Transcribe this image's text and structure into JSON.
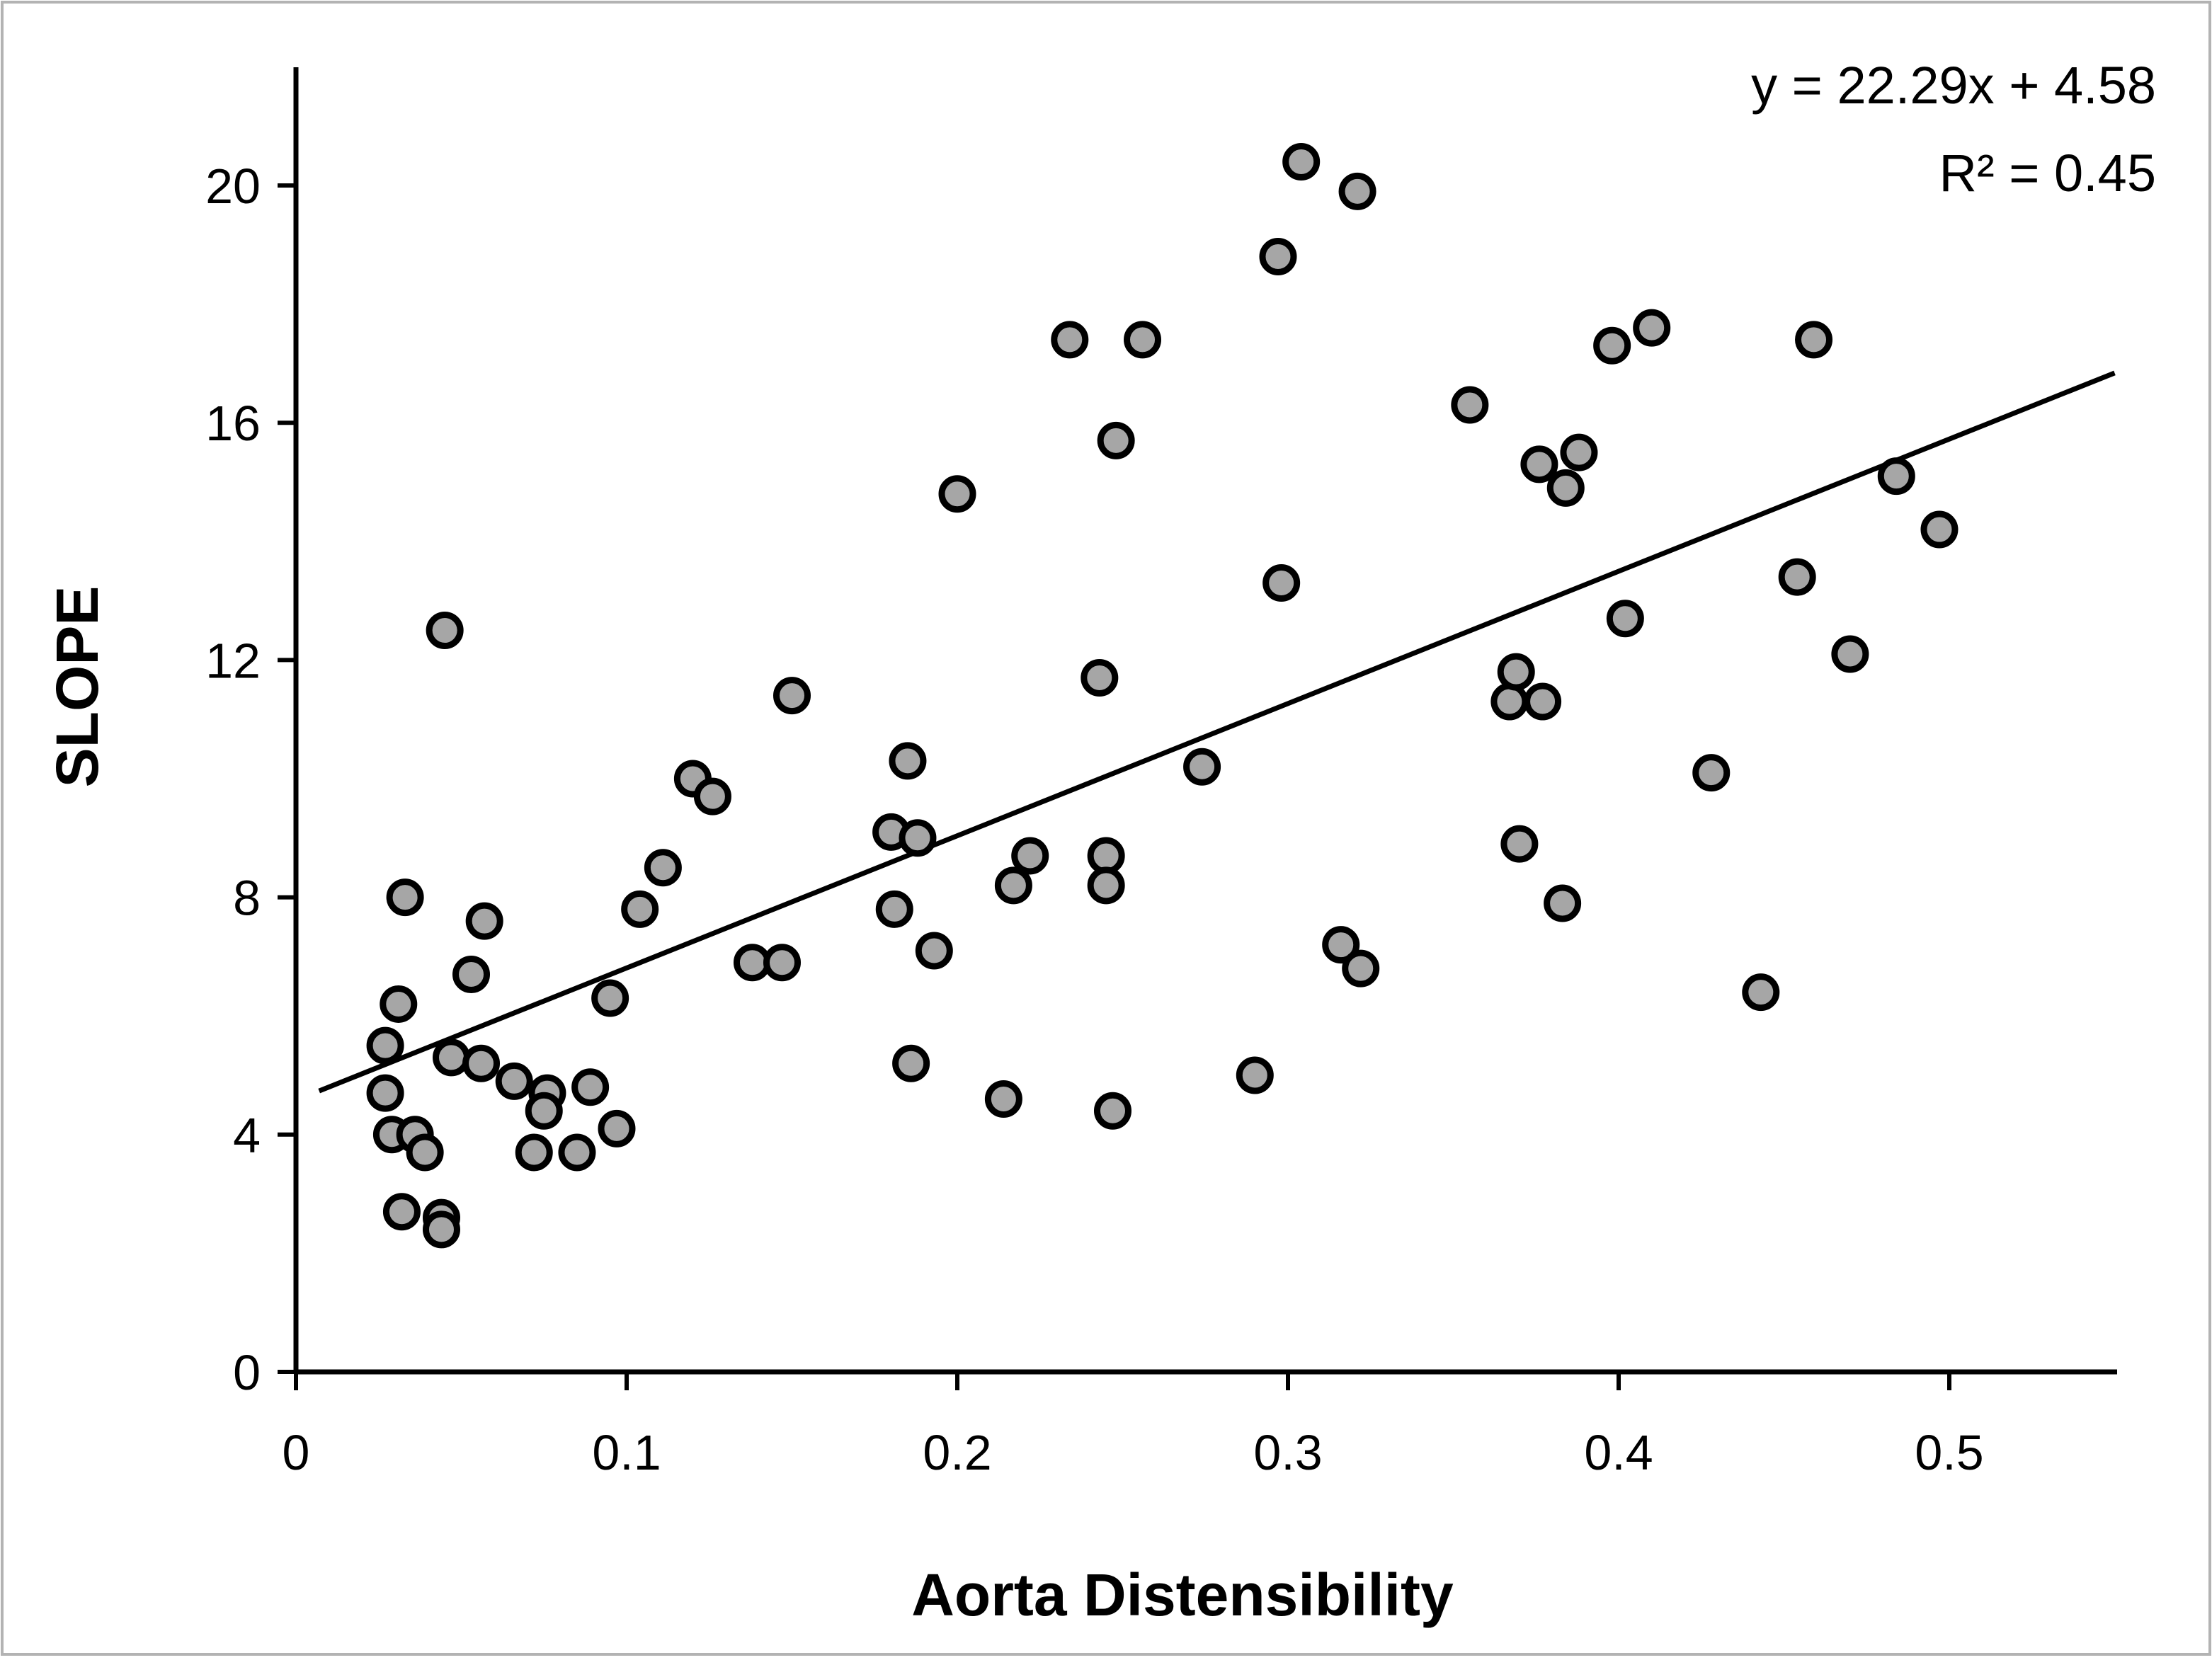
{
  "chart_data": {
    "type": "scatter",
    "xlabel": "Aorta Distensibility",
    "ylabel": "SLOPE",
    "xlim": [
      0,
      0.55
    ],
    "ylim": [
      0,
      22
    ],
    "xticks": [
      0,
      0.1,
      0.2,
      0.3,
      0.4,
      0.5
    ],
    "xtick_labels": [
      "0",
      "0.1",
      "0.2",
      "0.3",
      "0.4",
      "0.5"
    ],
    "yticks": [
      0,
      4,
      8,
      12,
      16,
      20
    ],
    "ytick_labels": [
      "0",
      "4",
      "8",
      "12",
      "16",
      "20"
    ],
    "grid": false,
    "legend": "none",
    "annotations": {
      "equation": "y = 22.29x + 4.58",
      "r_squared": "R² = 0.45"
    },
    "trendline": {
      "slope": 22.29,
      "intercept": 4.58,
      "x_start": 0.007,
      "x_end": 0.55
    },
    "marker_fill": "#a6a6a6",
    "marker_edge": "#000000",
    "points": [
      {
        "x": 0.027,
        "y": 5.5
      },
      {
        "x": 0.031,
        "y": 6.2
      },
      {
        "x": 0.033,
        "y": 8.0
      },
      {
        "x": 0.027,
        "y": 4.7
      },
      {
        "x": 0.029,
        "y": 4.0
      },
      {
        "x": 0.036,
        "y": 4.0
      },
      {
        "x": 0.039,
        "y": 3.7
      },
      {
        "x": 0.032,
        "y": 2.7
      },
      {
        "x": 0.044,
        "y": 2.6
      },
      {
        "x": 0.044,
        "y": 2.4
      },
      {
        "x": 0.045,
        "y": 12.5
      },
      {
        "x": 0.047,
        "y": 5.3
      },
      {
        "x": 0.053,
        "y": 6.7
      },
      {
        "x": 0.056,
        "y": 5.2
      },
      {
        "x": 0.057,
        "y": 7.6
      },
      {
        "x": 0.066,
        "y": 4.9
      },
      {
        "x": 0.072,
        "y": 3.7
      },
      {
        "x": 0.076,
        "y": 4.7
      },
      {
        "x": 0.075,
        "y": 4.4
      },
      {
        "x": 0.085,
        "y": 3.7
      },
      {
        "x": 0.089,
        "y": 4.8
      },
      {
        "x": 0.095,
        "y": 6.3
      },
      {
        "x": 0.097,
        "y": 4.1
      },
      {
        "x": 0.104,
        "y": 7.8
      },
      {
        "x": 0.111,
        "y": 8.5
      },
      {
        "x": 0.12,
        "y": 10.0
      },
      {
        "x": 0.126,
        "y": 9.7
      },
      {
        "x": 0.138,
        "y": 6.9
      },
      {
        "x": 0.147,
        "y": 6.9
      },
      {
        "x": 0.15,
        "y": 11.4
      },
      {
        "x": 0.18,
        "y": 9.1
      },
      {
        "x": 0.181,
        "y": 7.8
      },
      {
        "x": 0.185,
        "y": 10.3
      },
      {
        "x": 0.188,
        "y": 9.0
      },
      {
        "x": 0.186,
        "y": 5.2
      },
      {
        "x": 0.193,
        "y": 7.1
      },
      {
        "x": 0.2,
        "y": 14.8
      },
      {
        "x": 0.214,
        "y": 4.6
      },
      {
        "x": 0.217,
        "y": 8.2
      },
      {
        "x": 0.222,
        "y": 8.7
      },
      {
        "x": 0.234,
        "y": 17.4
      },
      {
        "x": 0.243,
        "y": 11.7
      },
      {
        "x": 0.245,
        "y": 8.7
      },
      {
        "x": 0.245,
        "y": 8.2
      },
      {
        "x": 0.247,
        "y": 4.4
      },
      {
        "x": 0.248,
        "y": 15.7
      },
      {
        "x": 0.256,
        "y": 17.4
      },
      {
        "x": 0.274,
        "y": 10.2
      },
      {
        "x": 0.29,
        "y": 5.0
      },
      {
        "x": 0.297,
        "y": 18.8
      },
      {
        "x": 0.298,
        "y": 13.3
      },
      {
        "x": 0.304,
        "y": 20.4
      },
      {
        "x": 0.316,
        "y": 7.2
      },
      {
        "x": 0.321,
        "y": 19.9
      },
      {
        "x": 0.322,
        "y": 6.8
      },
      {
        "x": 0.355,
        "y": 16.3
      },
      {
        "x": 0.367,
        "y": 11.3
      },
      {
        "x": 0.369,
        "y": 11.8
      },
      {
        "x": 0.37,
        "y": 8.9
      },
      {
        "x": 0.376,
        "y": 15.3
      },
      {
        "x": 0.377,
        "y": 11.3
      },
      {
        "x": 0.383,
        "y": 7.9
      },
      {
        "x": 0.384,
        "y": 14.9
      },
      {
        "x": 0.388,
        "y": 15.5
      },
      {
        "x": 0.398,
        "y": 17.3
      },
      {
        "x": 0.402,
        "y": 12.7
      },
      {
        "x": 0.41,
        "y": 17.6
      },
      {
        "x": 0.428,
        "y": 10.1
      },
      {
        "x": 0.443,
        "y": 6.4
      },
      {
        "x": 0.454,
        "y": 13.4
      },
      {
        "x": 0.459,
        "y": 17.4
      },
      {
        "x": 0.47,
        "y": 12.1
      },
      {
        "x": 0.484,
        "y": 15.1
      },
      {
        "x": 0.497,
        "y": 14.2
      }
    ]
  }
}
